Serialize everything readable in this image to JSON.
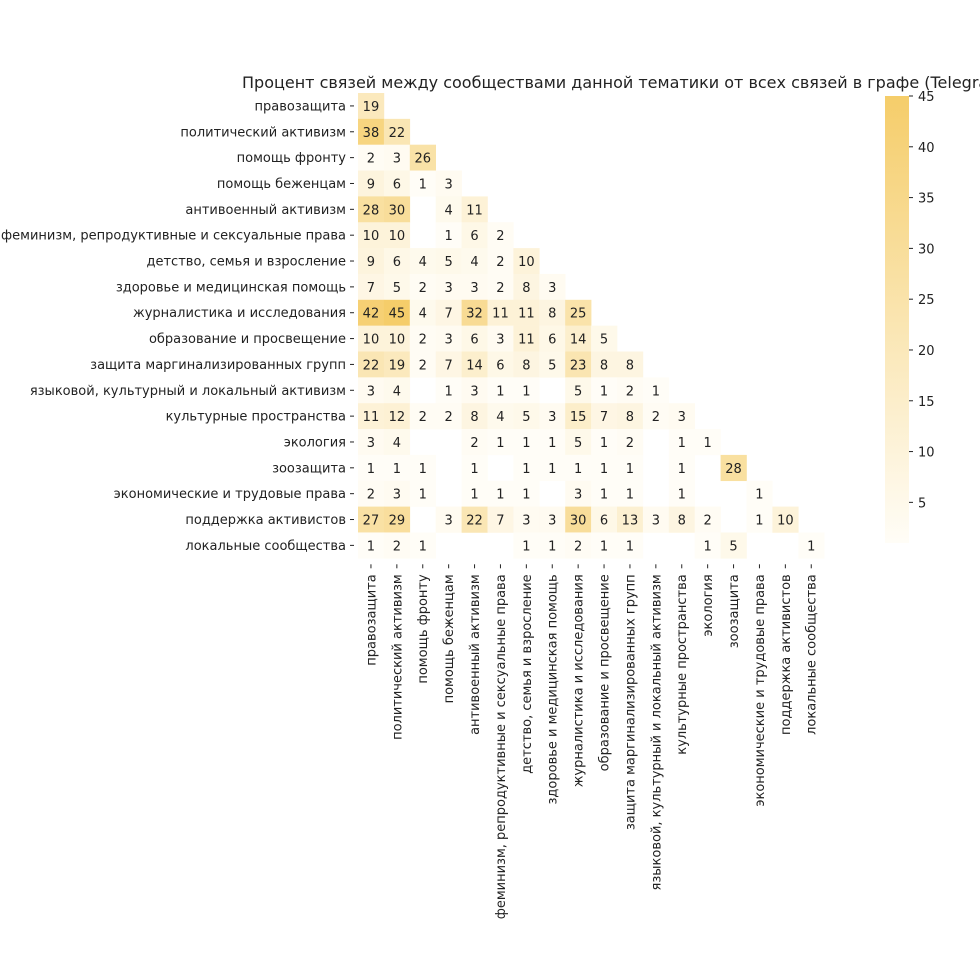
{
  "chart_data": {
    "type": "heatmap",
    "title": "Процент связей между сообществами данной тематики от всех связей в графе (Telegram)",
    "categories": [
      "правозащита",
      "политический активизм",
      "помощь фронту",
      "помощь беженцам",
      "антивоенный активизм",
      "феминизм, репродуктивные и сексуальные права",
      "детство, семья и взросление",
      "здоровье и медицинская помощь",
      "журналистика и исследования",
      "образование и просвещение",
      "защита маргинализированных групп",
      "языковой, культурный и локальный активизм",
      "культурные пространства",
      "экология",
      "зоозащита",
      "экономические и трудовые права",
      "поддержка активистов",
      "локальные сообщества"
    ],
    "values": [
      [
        19
      ],
      [
        38,
        22
      ],
      [
        2,
        3,
        26
      ],
      [
        9,
        6,
        1,
        3
      ],
      [
        28,
        30,
        null,
        4,
        11
      ],
      [
        10,
        10,
        null,
        1,
        6,
        2
      ],
      [
        9,
        6,
        4,
        5,
        4,
        2,
        10
      ],
      [
        7,
        5,
        2,
        3,
        3,
        2,
        8,
        3
      ],
      [
        42,
        45,
        4,
        7,
        32,
        11,
        11,
        8,
        25
      ],
      [
        10,
        10,
        2,
        3,
        6,
        3,
        11,
        6,
        14,
        5
      ],
      [
        22,
        19,
        2,
        7,
        14,
        6,
        8,
        5,
        23,
        8,
        8
      ],
      [
        3,
        4,
        null,
        1,
        3,
        1,
        1,
        null,
        5,
        1,
        2,
        1
      ],
      [
        11,
        12,
        2,
        2,
        8,
        4,
        5,
        3,
        15,
        7,
        8,
        2,
        3
      ],
      [
        3,
        4,
        null,
        null,
        2,
        1,
        1,
        1,
        5,
        1,
        2,
        null,
        1,
        1
      ],
      [
        1,
        1,
        1,
        null,
        1,
        null,
        1,
        1,
        1,
        1,
        1,
        null,
        1,
        null,
        28
      ],
      [
        2,
        3,
        1,
        null,
        1,
        1,
        1,
        null,
        3,
        1,
        1,
        null,
        1,
        null,
        null,
        1
      ],
      [
        27,
        29,
        null,
        3,
        22,
        7,
        3,
        3,
        30,
        6,
        13,
        3,
        8,
        2,
        null,
        1,
        10
      ],
      [
        1,
        2,
        1,
        null,
        null,
        null,
        1,
        1,
        2,
        1,
        1,
        null,
        null,
        1,
        5,
        null,
        null,
        1
      ]
    ],
    "colorscale": [
      "#fffdf7",
      "#f5cd6a"
    ],
    "colorbar": {
      "ticks": [
        5,
        10,
        15,
        20,
        25,
        30,
        35,
        40,
        45
      ],
      "range": [
        1,
        45
      ]
    }
  }
}
